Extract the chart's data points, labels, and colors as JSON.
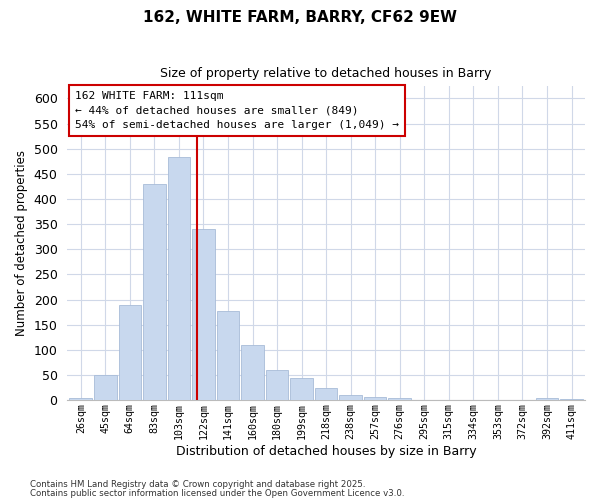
{
  "title": "162, WHITE FARM, BARRY, CF62 9EW",
  "subtitle": "Size of property relative to detached houses in Barry",
  "xlabel": "Distribution of detached houses by size in Barry",
  "ylabel": "Number of detached properties",
  "bar_labels": [
    "26sqm",
    "45sqm",
    "64sqm",
    "83sqm",
    "103sqm",
    "122sqm",
    "141sqm",
    "160sqm",
    "180sqm",
    "199sqm",
    "218sqm",
    "238sqm",
    "257sqm",
    "276sqm",
    "295sqm",
    "315sqm",
    "334sqm",
    "353sqm",
    "372sqm",
    "392sqm",
    "411sqm"
  ],
  "bar_values": [
    5,
    50,
    190,
    430,
    483,
    340,
    177,
    110,
    60,
    45,
    25,
    11,
    6,
    4,
    1,
    1,
    1,
    1,
    1,
    5,
    2
  ],
  "bar_color": "#c8d8ee",
  "bar_edge_color": "#a8bcd8",
  "vline_x": 4.72,
  "vline_color": "#cc0000",
  "ylim": [
    0,
    625
  ],
  "yticks": [
    0,
    50,
    100,
    150,
    200,
    250,
    300,
    350,
    400,
    450,
    500,
    550,
    600
  ],
  "annotation_title": "162 WHITE FARM: 111sqm",
  "annotation_line1": "← 44% of detached houses are smaller (849)",
  "annotation_line2": "54% of semi-detached houses are larger (1,049) →",
  "annotation_box_color": "#ffffff",
  "annotation_box_edge": "#cc0000",
  "footnote1": "Contains HM Land Registry data © Crown copyright and database right 2025.",
  "footnote2": "Contains public sector information licensed under the Open Government Licence v3.0.",
  "grid_color": "#d0d8e8",
  "background_color": "#ffffff"
}
